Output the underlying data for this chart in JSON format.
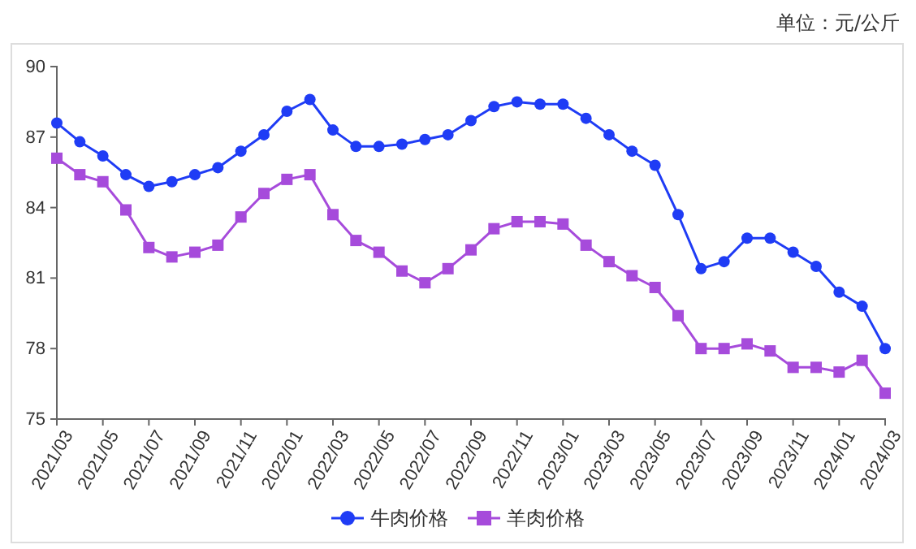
{
  "chart_data": {
    "type": "line",
    "ylabel": "单位：元/公斤",
    "categories": [
      "2021/03",
      null,
      "2021/05",
      null,
      "2021/07",
      null,
      "2021/09",
      null,
      "2021/11",
      null,
      "2022/01",
      null,
      "2022/03",
      null,
      "2022/05",
      null,
      "2022/07",
      null,
      "2022/09",
      null,
      "2022/11",
      null,
      "2023/01",
      null,
      "2023/03",
      null,
      "2023/05",
      null,
      "2023/07",
      null,
      "2023/09",
      null,
      "2023/11",
      null,
      "2024/01",
      null,
      "2024/03"
    ],
    "series": [
      {
        "name": "牛肉价格",
        "color": "#1f3cf5",
        "marker": "circle",
        "values": [
          87.6,
          86.8,
          86.2,
          85.4,
          84.9,
          85.1,
          85.4,
          85.7,
          86.4,
          87.1,
          88.1,
          88.6,
          87.3,
          86.6,
          86.6,
          86.7,
          86.9,
          87.1,
          87.7,
          88.3,
          88.5,
          88.4,
          88.4,
          87.8,
          87.1,
          86.4,
          85.8,
          83.7,
          81.4,
          81.7,
          82.7,
          82.7,
          82.1,
          81.5,
          80.4,
          79.8,
          78.0
        ]
      },
      {
        "name": "羊肉价格",
        "color": "#a64bdb",
        "marker": "square",
        "values": [
          86.1,
          85.4,
          85.1,
          83.9,
          82.3,
          81.9,
          82.1,
          82.4,
          83.6,
          84.6,
          85.2,
          85.4,
          83.7,
          82.6,
          82.1,
          81.3,
          80.8,
          81.4,
          82.2,
          83.1,
          83.4,
          83.4,
          83.3,
          82.4,
          81.7,
          81.1,
          80.6,
          79.4,
          78.0,
          78.0,
          78.2,
          77.9,
          77.2,
          77.2,
          77.0,
          77.5,
          76.1
        ]
      }
    ],
    "ylim": [
      75,
      90
    ],
    "yticks": [
      75,
      78,
      81,
      84,
      87,
      90
    ],
    "legend": "bottom"
  }
}
